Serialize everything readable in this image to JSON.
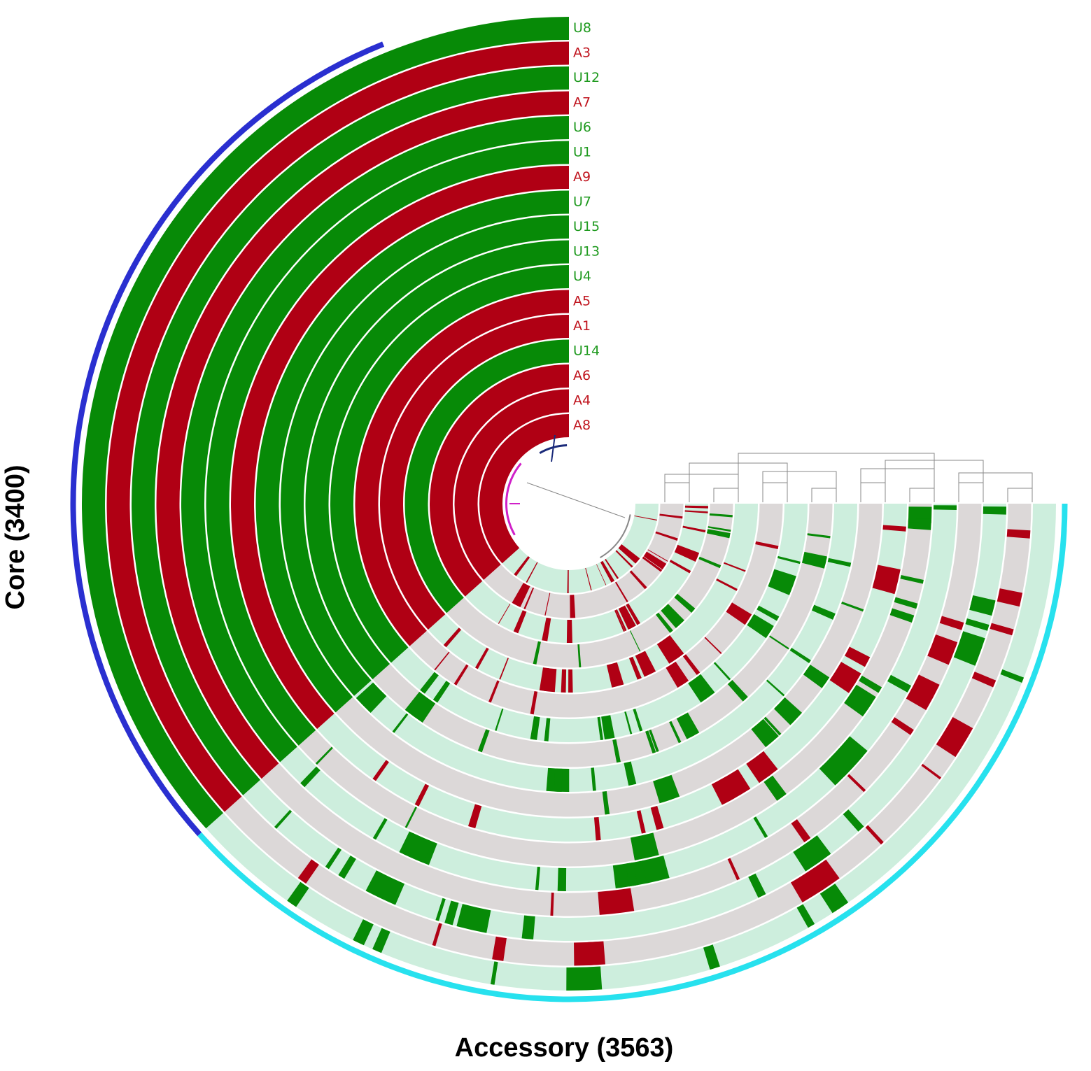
{
  "figure": {
    "genomes": [
      {
        "label": "U8",
        "group": "U"
      },
      {
        "label": "A3",
        "group": "A"
      },
      {
        "label": "U12",
        "group": "U"
      },
      {
        "label": "A7",
        "group": "A"
      },
      {
        "label": "U6",
        "group": "U"
      },
      {
        "label": "U1",
        "group": "U"
      },
      {
        "label": "A9",
        "group": "A"
      },
      {
        "label": "U7",
        "group": "U"
      },
      {
        "label": "U15",
        "group": "U"
      },
      {
        "label": "U13",
        "group": "U"
      },
      {
        "label": "U4",
        "group": "U"
      },
      {
        "label": "A5",
        "group": "A"
      },
      {
        "label": "A1",
        "group": "A"
      },
      {
        "label": "U14",
        "group": "U"
      },
      {
        "label": "A6",
        "group": "A"
      },
      {
        "label": "A4",
        "group": "A"
      },
      {
        "label": "A8",
        "group": "A"
      }
    ],
    "core": {
      "label": "Core (3400)",
      "gene_count": 3400
    },
    "accessory": {
      "label": "Accessory (3563)",
      "gene_count": 3563
    },
    "colors": {
      "group_U": "#078a07",
      "group_A": "#b00014",
      "group_U_label": "#1f9a1f",
      "group_A_label": "#c0141e",
      "absent_light": "#cdeedd",
      "absent_gray": "#dcd8d8",
      "core_bar": "#2a2fd0",
      "accessory_bar": "#27e1ee",
      "core_text": "#3a3fd0",
      "accessory_text": "#22a8e6",
      "tree_dark": "#1a2a7a",
      "tree_magenta": "#d020c8",
      "tree_gray": "#888888"
    }
  }
}
